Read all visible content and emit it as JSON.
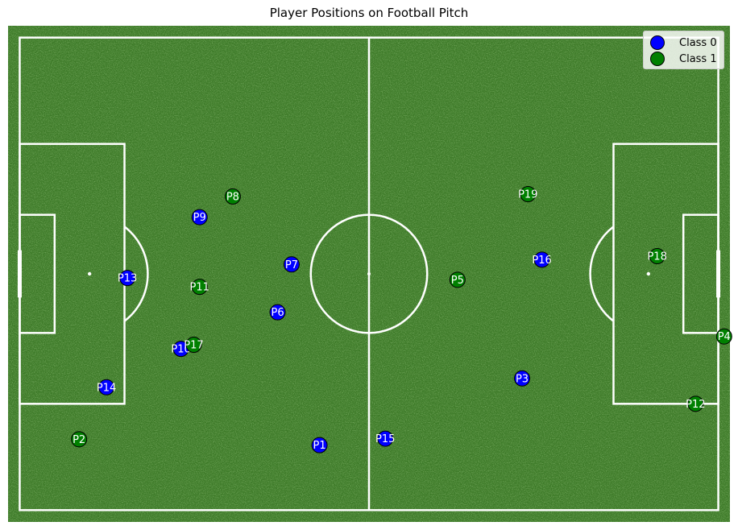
{
  "chart_data": {
    "type": "scatter",
    "title": "Player Positions on Football Pitch",
    "xlabel": "",
    "ylabel": "",
    "xlim": [
      -2,
      122
    ],
    "ylim": [
      -2,
      82
    ],
    "grid": false,
    "legend_placement": "top-right",
    "pitch": {
      "length": 120,
      "width": 80,
      "penalty_area_depth": 18,
      "penalty_area_width": 44,
      "six_yard_depth": 6,
      "six_yard_width": 20,
      "goal_width": 8,
      "center_circle_radius": 10,
      "penalty_spot_distance": 12,
      "colors": {
        "grass": "#3d7a28",
        "lines": "#ffffff"
      }
    },
    "series": [
      {
        "name": "Class 0",
        "color": "#0000ff",
        "points": [
          {
            "label": "P1",
            "x": 51.5,
            "y": 11.0
          },
          {
            "label": "P3",
            "x": 86.3,
            "y": 22.3
          },
          {
            "label": "P6",
            "x": 44.3,
            "y": 33.5
          },
          {
            "label": "P7",
            "x": 46.7,
            "y": 41.6
          },
          {
            "label": "P9",
            "x": 30.9,
            "y": 49.6
          },
          {
            "label": "P10",
            "x": 27.7,
            "y": 27.3
          },
          {
            "label": "P13",
            "x": 18.5,
            "y": 39.3
          },
          {
            "label": "P14",
            "x": 14.9,
            "y": 20.8
          },
          {
            "label": "P15",
            "x": 62.8,
            "y": 12.1
          },
          {
            "label": "P16",
            "x": 89.7,
            "y": 42.4
          }
        ]
      },
      {
        "name": "Class 1",
        "color": "#008000",
        "points": [
          {
            "label": "P2",
            "x": 10.2,
            "y": 12.0
          },
          {
            "label": "P4",
            "x": 121.0,
            "y": 29.4
          },
          {
            "label": "P5",
            "x": 75.2,
            "y": 39.0
          },
          {
            "label": "P8",
            "x": 36.6,
            "y": 53.1
          },
          {
            "label": "P11",
            "x": 30.9,
            "y": 37.8
          },
          {
            "label": "P12",
            "x": 116.1,
            "y": 18.0
          },
          {
            "label": "P17",
            "x": 29.9,
            "y": 28.0
          },
          {
            "label": "P18",
            "x": 109.5,
            "y": 43.0
          },
          {
            "label": "P19",
            "x": 87.3,
            "y": 53.5
          }
        ]
      }
    ]
  }
}
